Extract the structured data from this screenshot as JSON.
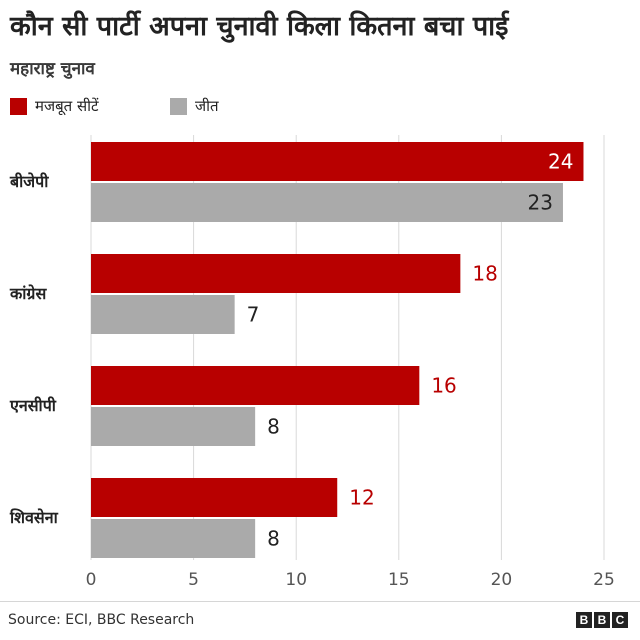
{
  "title": "कौन सी पार्टी अपना चुनावी किला कितना बचा पाई",
  "subtitle": "महाराष्ट्र चुनाव",
  "source": "Source: ECI, BBC Research",
  "logo": [
    "B",
    "B",
    "C"
  ],
  "colors": {
    "strong": "#b80000",
    "won": "#aaaaaa",
    "strong_label": "#b80000",
    "won_label": "#222222",
    "grid": "#d9d9d9"
  },
  "chart_data": {
    "type": "bar",
    "orientation": "horizontal",
    "categories": [
      "बीजेपी",
      "कांग्रेस",
      "एनसीपी",
      "शिवसेना"
    ],
    "series": [
      {
        "name": "मजबूत सीटें",
        "values": [
          24,
          18,
          16,
          12
        ]
      },
      {
        "name": "जीत",
        "values": [
          23,
          7,
          8,
          8
        ]
      }
    ],
    "xlim": [
      0,
      25
    ],
    "xticks": [
      0,
      5,
      10,
      15,
      20,
      25
    ],
    "grid": true,
    "legend_position": "top-left",
    "data_labels": true
  }
}
